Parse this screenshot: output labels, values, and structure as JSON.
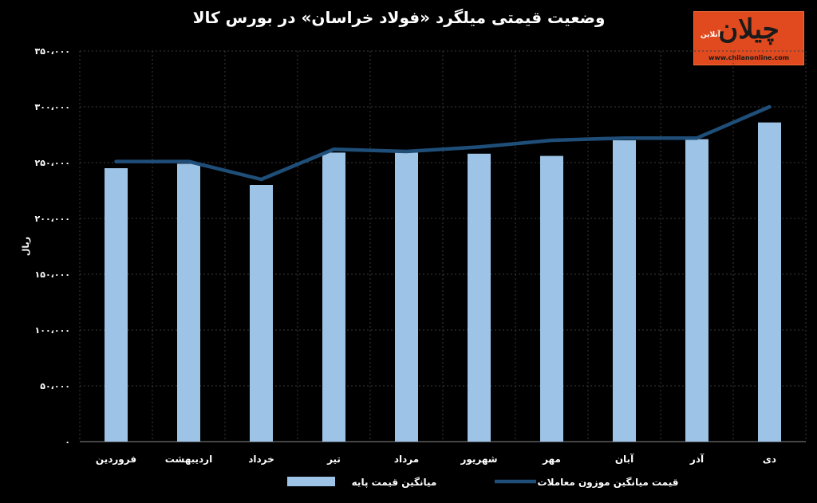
{
  "chart_data": {
    "type": "bar",
    "title": "وضعیت قیمتی میلگرد «فولاد خراسان» در بورس کالا",
    "ylabel": "ریال",
    "xlabel": "",
    "ylim": [
      0,
      350000
    ],
    "y_ticks": [
      0,
      50000,
      100000,
      150000,
      200000,
      250000,
      300000,
      350000
    ],
    "y_tick_labels": [
      "۰",
      "۵۰،۰۰۰",
      "۱۰۰،۰۰۰",
      "۱۵۰،۰۰۰",
      "۲۰۰،۰۰۰",
      "۲۵۰،۰۰۰",
      "۳۰۰،۰۰۰",
      "۳۵۰،۰۰۰"
    ],
    "grid": true,
    "legend_position": "bottom",
    "categories": [
      "فروردین",
      "اردیبهشت",
      "خرداد",
      "تیر",
      "مرداد",
      "شهریور",
      "مهر",
      "آبان",
      "آذر",
      "دی"
    ],
    "series": [
      {
        "name": "میانگین قیمت پایه",
        "type": "bar",
        "color": "#9dc3e6",
        "values": [
          245000,
          249000,
          230000,
          259000,
          259000,
          258000,
          256000,
          270000,
          271000,
          286000
        ]
      },
      {
        "name": "قیمت میانگین موزون معاملات",
        "type": "line",
        "color": "#1f4e79",
        "values": [
          251000,
          251000,
          235000,
          262000,
          260000,
          264000,
          270000,
          272000,
          272000,
          300000
        ]
      }
    ]
  },
  "logo": {
    "word": "چیلان",
    "sub": "آنلاین",
    "url": "www.chilanonline.com"
  }
}
